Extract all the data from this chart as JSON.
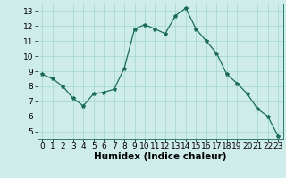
{
  "x": [
    0,
    1,
    2,
    3,
    4,
    5,
    6,
    7,
    8,
    9,
    10,
    11,
    12,
    13,
    14,
    15,
    16,
    17,
    18,
    19,
    20,
    21,
    22,
    23
  ],
  "y": [
    8.8,
    8.5,
    8.0,
    7.2,
    6.7,
    7.5,
    7.6,
    7.8,
    9.2,
    11.8,
    12.1,
    11.8,
    11.5,
    12.7,
    13.2,
    11.8,
    11.0,
    10.2,
    8.8,
    8.2,
    7.5,
    6.5,
    6.0,
    4.7
  ],
  "line_color": "#1a6b5a",
  "marker": "*",
  "marker_size": 3,
  "bg_color": "#ceecea",
  "grid_color": "#a8d8d4",
  "xlabel": "Humidex (Indice chaleur)",
  "xlabel_fontsize": 7.5,
  "tick_fontsize": 6.5,
  "ylim": [
    4.5,
    13.5
  ],
  "xlim": [
    -0.5,
    23.5
  ],
  "yticks": [
    5,
    6,
    7,
    8,
    9,
    10,
    11,
    12,
    13
  ],
  "xticks": [
    0,
    1,
    2,
    3,
    4,
    5,
    6,
    7,
    8,
    9,
    10,
    11,
    12,
    13,
    14,
    15,
    16,
    17,
    18,
    19,
    20,
    21,
    22,
    23
  ]
}
